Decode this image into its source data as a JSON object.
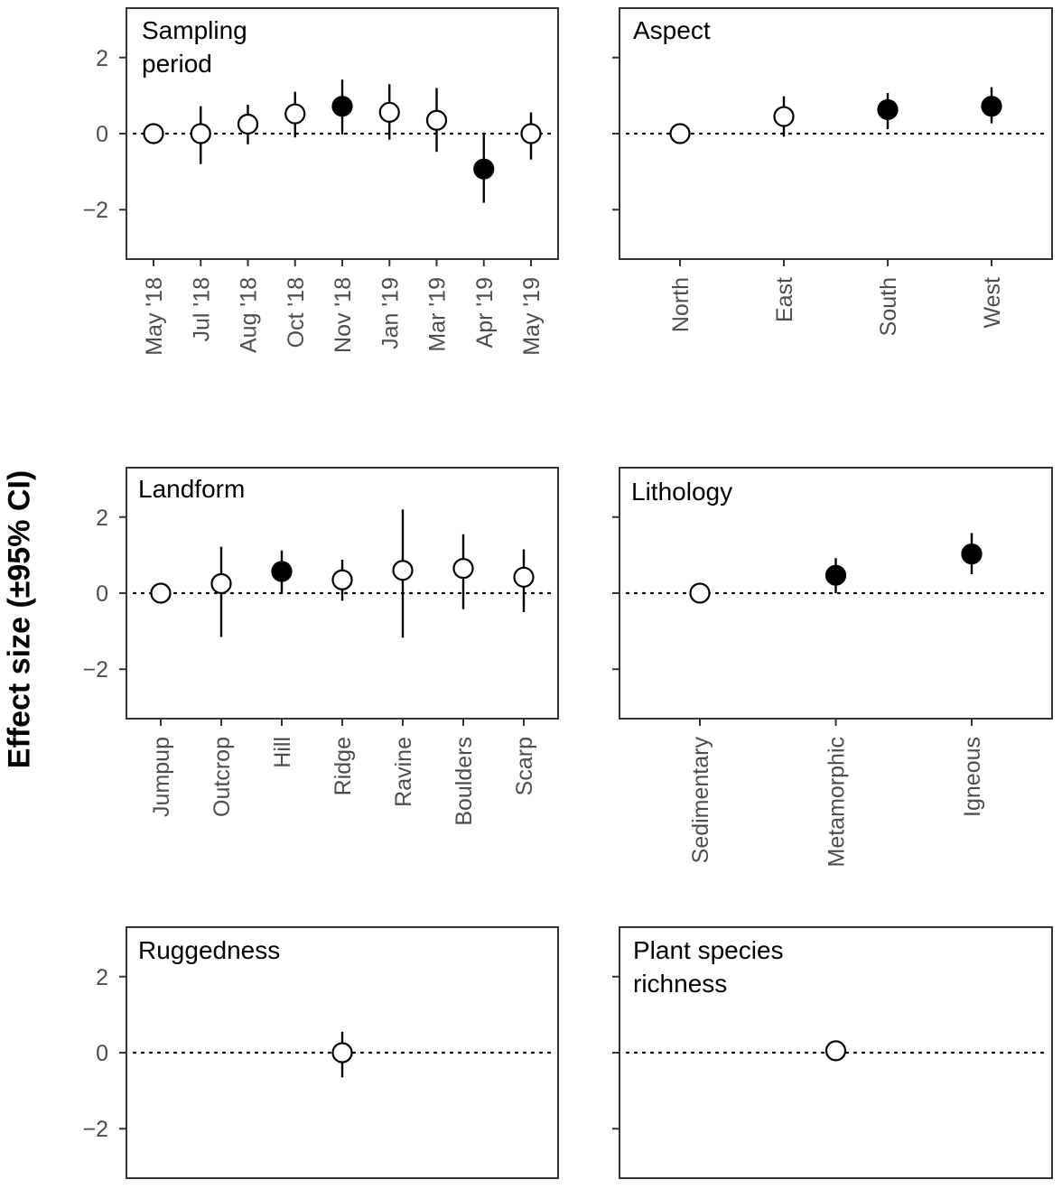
{
  "figure": {
    "ylabel": "Effect size (±95% CI)",
    "ytick_labels": [
      "2",
      "0",
      "−2"
    ],
    "ylim": [
      -3.3,
      3.3
    ],
    "colors": {
      "filled": "#000000",
      "open": "#ffffff",
      "stroke": "#000000",
      "axis": "#333333",
      "tick_text": "#4d4d4d"
    }
  },
  "chart_data": [
    {
      "type": "scatter",
      "title": "Sampling period",
      "title_lines": [
        "Sampling",
        "period"
      ],
      "categories": [
        "May '18",
        "Jul '18",
        "Aug '18",
        "Oct '18",
        "Nov '18",
        "Jan '19",
        "Mar '19",
        "Apr '19",
        "May '19"
      ],
      "values": [
        0,
        0,
        0.25,
        0.52,
        0.72,
        0.56,
        0.35,
        -0.93,
        0
      ],
      "ci_low": [
        0,
        -0.8,
        -0.28,
        -0.1,
        -0.02,
        -0.16,
        -0.48,
        -1.82,
        -0.68
      ],
      "ci_high": [
        0,
        0.72,
        0.76,
        1.1,
        1.42,
        1.3,
        1.2,
        -0.02,
        0.56
      ],
      "significant": [
        false,
        false,
        false,
        false,
        true,
        false,
        false,
        true,
        false
      ],
      "show_ytick_labels": true,
      "xlabel": "",
      "ylabel": "Effect size (±95% CI)",
      "ylim": [
        -3.3,
        3.3
      ]
    },
    {
      "type": "scatter",
      "title": "Aspect",
      "title_lines": [
        "Aspect"
      ],
      "categories": [
        "North",
        "East",
        "South",
        "West"
      ],
      "values": [
        0,
        0.45,
        0.63,
        0.72
      ],
      "ci_low": [
        0,
        -0.08,
        0.12,
        0.27
      ],
      "ci_high": [
        0,
        0.98,
        1.07,
        1.22
      ],
      "significant": [
        false,
        false,
        true,
        true
      ],
      "show_ytick_labels": false,
      "xlabel": "",
      "ylabel": "",
      "ylim": [
        -3.3,
        3.3
      ]
    },
    {
      "type": "scatter",
      "title": "Landform",
      "title_lines": [
        "Landform"
      ],
      "categories": [
        "Jumpup",
        "Outcrop",
        "Hill",
        "Ridge",
        "Ravine",
        "Boulders",
        "Scarp"
      ],
      "values": [
        0,
        0.25,
        0.57,
        0.35,
        0.6,
        0.65,
        0.42
      ],
      "ci_low": [
        0,
        -1.15,
        0,
        -0.2,
        -1.17,
        -0.42,
        -0.5
      ],
      "ci_high": [
        0,
        1.22,
        1.12,
        0.88,
        2.2,
        1.55,
        1.15
      ],
      "significant": [
        false,
        false,
        true,
        false,
        false,
        false,
        false
      ],
      "show_ytick_labels": true,
      "xlabel": "",
      "ylabel": "Effect size (±95% CI)",
      "ylim": [
        -3.3,
        3.3
      ]
    },
    {
      "type": "scatter",
      "title": "Lithology",
      "title_lines": [
        "Lithology"
      ],
      "categories": [
        "Sedimentary",
        "Metamorphic",
        "Igneous"
      ],
      "values": [
        0,
        0.47,
        1.03
      ],
      "ci_low": [
        0,
        0,
        0.5
      ],
      "ci_high": [
        0,
        0.92,
        1.58
      ],
      "significant": [
        false,
        true,
        true
      ],
      "show_ytick_labels": false,
      "xlabel": "",
      "ylabel": "",
      "ylim": [
        -3.3,
        3.3
      ]
    },
    {
      "type": "scatter",
      "title": "Ruggedness",
      "title_lines": [
        "Ruggedness"
      ],
      "categories": [],
      "x_fraction": [
        0.5
      ],
      "values": [
        0
      ],
      "ci_low": [
        -0.65
      ],
      "ci_high": [
        0.55
      ],
      "significant": [
        false
      ],
      "show_ytick_labels": true,
      "xlabel": "",
      "ylabel": "Effect size (±95% CI)",
      "ylim": [
        -3.3,
        3.3
      ]
    },
    {
      "type": "scatter",
      "title": "Plant species richness",
      "title_lines": [
        "Plant species",
        "richness"
      ],
      "categories": [],
      "x_fraction": [
        0.5
      ],
      "values": [
        0.05
      ],
      "ci_low": [
        0.05
      ],
      "ci_high": [
        0.05
      ],
      "significant": [
        false
      ],
      "show_ytick_labels": false,
      "xlabel": "",
      "ylabel": "",
      "ylim": [
        -3.3,
        3.3
      ]
    }
  ]
}
